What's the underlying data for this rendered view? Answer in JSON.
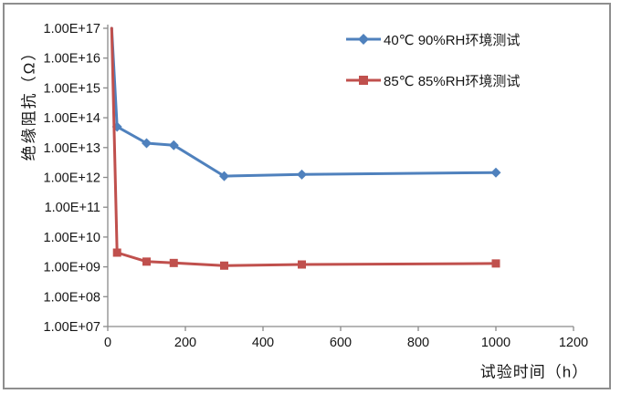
{
  "chart": {
    "background_color": "#FFFFFF",
    "border_color": "#8E8E8E",
    "axis_color": "#8A8A8A",
    "text_color": "#161616",
    "y_axis_title": "绝缘阻抗（Ω）",
    "x_axis_title": "试验时间（h）"
  },
  "chart_data": {
    "type": "line",
    "title": "",
    "xlabel": "试验时间（h）",
    "ylabel": "绝缘阻抗（Ω）",
    "y_scale": "log",
    "grid": false,
    "xlim": [
      0,
      1200
    ],
    "ylim": [
      10000000,
      1e+17
    ],
    "x_ticks": [
      0,
      200,
      400,
      600,
      800,
      1000,
      1200
    ],
    "y_tick_labels": [
      "1.00E+17",
      "1.00E+16",
      "1.00E+15",
      "1.00E+14",
      "1.00E+13",
      "1.00E+12",
      "1.00E+11",
      "1.00E+10",
      "1.00E+09",
      "1.00E+08",
      "1.00E+07"
    ],
    "y_tick_top_exponent": 17,
    "legend_position": "inside-top-right",
    "series": [
      {
        "name": "40℃ 90%RH环境测试",
        "color": "#4F81BD",
        "marker": "diamond",
        "x": [
          10,
          24,
          100,
          170,
          300,
          500,
          1000
        ],
        "y": [
          1e+17,
          50000000000000.0,
          14000000000000.0,
          12000000000000.0,
          1100000000000.0,
          1250000000000.0,
          1450000000000.0
        ]
      },
      {
        "name": "85℃ 85%RH环境测试",
        "color": "#C0504D",
        "marker": "square",
        "x": [
          10,
          24,
          100,
          170,
          300,
          500,
          1000
        ],
        "y": [
          1e+17,
          3000000000.0,
          1500000000.0,
          1350000000.0,
          1100000000.0,
          1200000000.0,
          1300000000.0
        ]
      }
    ]
  }
}
